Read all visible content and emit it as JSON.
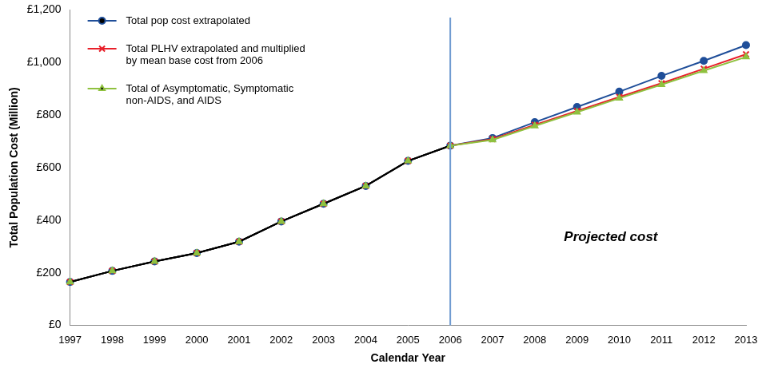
{
  "chart_data": {
    "type": "line",
    "x_label": "Calendar Year",
    "y_label": "Total Population Cost (Million)",
    "annotations": [
      {
        "text": "Projected cost"
      }
    ],
    "projection_start": "2006",
    "categories": [
      "1997",
      "1998",
      "1999",
      "2000",
      "2001",
      "2002",
      "2003",
      "2004",
      "2005",
      "2006",
      "2007",
      "2008",
      "2009",
      "2010",
      "2011",
      "2012",
      "2013"
    ],
    "series": [
      {
        "name": "Total pop cost extrapolated",
        "color": "#1f4e99",
        "marker": "circle",
        "values": [
          165,
          207,
          243,
          275,
          318,
          395,
          462,
          530,
          625,
          683,
          712,
          772,
          830,
          888,
          948,
          1005,
          1065
        ]
      },
      {
        "name": "Total PLHV extrapolated and multiplied by mean base cost from 2006",
        "color": "#e8202a",
        "marker": "x",
        "values": [
          165,
          207,
          243,
          275,
          318,
          395,
          462,
          530,
          625,
          683,
          708,
          762,
          815,
          868,
          920,
          975,
          1030
        ]
      },
      {
        "name": "Total of Asymptomatic, Symptomatic non-AIDS, and AIDS",
        "color": "#8fc13f",
        "marker": "triangle",
        "values": [
          165,
          207,
          243,
          275,
          318,
          395,
          462,
          530,
          625,
          683,
          705,
          758,
          810,
          863,
          915,
          968,
          1020
        ]
      }
    ],
    "ylim": [
      0,
      1200
    ],
    "yticks": [
      {
        "value": 0,
        "label": "£0"
      },
      {
        "value": 200,
        "label": "£200"
      },
      {
        "value": 400,
        "label": "£400"
      },
      {
        "value": 600,
        "label": "£600"
      },
      {
        "value": 800,
        "label": "£800"
      },
      {
        "value": 1000,
        "label": "£1,000"
      },
      {
        "value": 1200,
        "label": "£1,200"
      }
    ],
    "grid": false,
    "legend": "upper left"
  }
}
